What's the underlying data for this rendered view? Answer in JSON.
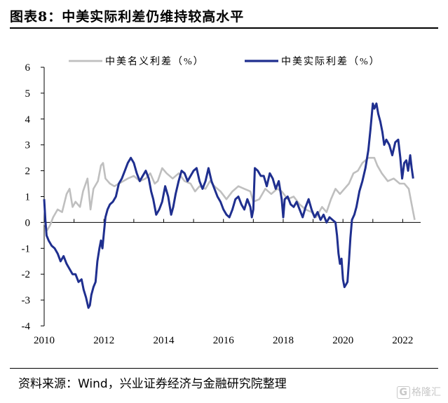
{
  "title": "图表8：中美实际利差仍维持较高水平",
  "source": "资料来源：Wind，兴业证券经济与金融研究院整理",
  "watermark": "格隆汇",
  "chart_data": {
    "type": "line",
    "title": "",
    "xlabel": "",
    "ylabel": "",
    "xlim": [
      2010,
      2022.6
    ],
    "ylim": [
      -4,
      6
    ],
    "x_ticks": [
      "2010",
      "2012",
      "2014",
      "2016",
      "2018",
      "2020",
      "2022"
    ],
    "y_ticks": [
      "6",
      "5",
      "4",
      "3",
      "2",
      "1",
      "0",
      "-1",
      "-2",
      "-3",
      "-4"
    ],
    "grid": false,
    "legend_position": "top",
    "series": [
      {
        "name": "中美名义利差（%）",
        "color": "#bfbfbf",
        "points": [
          [
            2010.0,
            0.0
          ],
          [
            2010.1,
            -0.3
          ],
          [
            2010.2,
            -0.1
          ],
          [
            2010.3,
            0.2
          ],
          [
            2010.45,
            0.5
          ],
          [
            2010.6,
            0.4
          ],
          [
            2010.75,
            1.1
          ],
          [
            2010.85,
            1.3
          ],
          [
            2010.95,
            0.6
          ],
          [
            2011.05,
            0.8
          ],
          [
            2011.2,
            0.6
          ],
          [
            2011.3,
            1.2
          ],
          [
            2011.45,
            1.7
          ],
          [
            2011.55,
            0.5
          ],
          [
            2011.65,
            1.3
          ],
          [
            2011.8,
            1.6
          ],
          [
            2011.9,
            2.2
          ],
          [
            2011.97,
            2.3
          ],
          [
            2012.05,
            1.7
          ],
          [
            2012.2,
            1.5
          ],
          [
            2012.35,
            1.4
          ],
          [
            2012.5,
            1.5
          ],
          [
            2012.65,
            1.6
          ],
          [
            2012.8,
            1.7
          ],
          [
            2013.0,
            1.8
          ],
          [
            2013.2,
            1.6
          ],
          [
            2013.4,
            1.7
          ],
          [
            2013.55,
            1.9
          ],
          [
            2013.7,
            1.5
          ],
          [
            2013.8,
            1.6
          ],
          [
            2013.95,
            2.1
          ],
          [
            2014.1,
            1.9
          ],
          [
            2014.3,
            1.7
          ],
          [
            2014.5,
            1.9
          ],
          [
            2014.7,
            1.6
          ],
          [
            2014.9,
            1.5
          ],
          [
            2015.05,
            1.2
          ],
          [
            2015.2,
            1.4
          ],
          [
            2015.4,
            1.3
          ],
          [
            2015.55,
            1.6
          ],
          [
            2015.7,
            1.4
          ],
          [
            2015.9,
            1.2
          ],
          [
            2016.1,
            0.9
          ],
          [
            2016.3,
            1.2
          ],
          [
            2016.5,
            1.4
          ],
          [
            2016.7,
            1.3
          ],
          [
            2016.9,
            1.2
          ],
          [
            2017.0,
            0.8
          ],
          [
            2017.2,
            0.9
          ],
          [
            2017.4,
            1.3
          ],
          [
            2017.6,
            1.1
          ],
          [
            2017.8,
            1.3
          ],
          [
            2017.95,
            1.2
          ],
          [
            2018.15,
            0.9
          ],
          [
            2018.35,
            1.0
          ],
          [
            2018.55,
            0.7
          ],
          [
            2018.75,
            0.5
          ],
          [
            2018.95,
            0.4
          ],
          [
            2019.1,
            0.2
          ],
          [
            2019.3,
            0.6
          ],
          [
            2019.45,
            0.4
          ],
          [
            2019.6,
            0.9
          ],
          [
            2019.75,
            1.3
          ],
          [
            2019.9,
            1.1
          ],
          [
            2020.05,
            1.3
          ],
          [
            2020.2,
            1.5
          ],
          [
            2020.35,
            1.9
          ],
          [
            2020.5,
            2.0
          ],
          [
            2020.65,
            2.3
          ],
          [
            2020.85,
            2.5
          ],
          [
            2021.05,
            2.5
          ],
          [
            2021.15,
            2.2
          ],
          [
            2021.3,
            1.9
          ],
          [
            2021.5,
            1.6
          ],
          [
            2021.7,
            1.7
          ],
          [
            2021.9,
            1.5
          ],
          [
            2022.05,
            1.5
          ],
          [
            2022.2,
            1.3
          ],
          [
            2022.3,
            0.7
          ],
          [
            2022.4,
            0.1
          ]
        ]
      },
      {
        "name": "中美实际利差（%）",
        "color": "#1f2f8f",
        "points": [
          [
            2010.0,
            0.9
          ],
          [
            2010.04,
            0.1
          ],
          [
            2010.08,
            -0.5
          ],
          [
            2010.15,
            -0.7
          ],
          [
            2010.25,
            -0.9
          ],
          [
            2010.35,
            -1.0
          ],
          [
            2010.45,
            -1.2
          ],
          [
            2010.55,
            -1.5
          ],
          [
            2010.65,
            -1.3
          ],
          [
            2010.75,
            -1.6
          ],
          [
            2010.85,
            -1.8
          ],
          [
            2010.95,
            -2.0
          ],
          [
            2011.05,
            -2.0
          ],
          [
            2011.15,
            -2.3
          ],
          [
            2011.25,
            -2.2
          ],
          [
            2011.32,
            -2.6
          ],
          [
            2011.4,
            -2.9
          ],
          [
            2011.48,
            -3.3
          ],
          [
            2011.53,
            -3.2
          ],
          [
            2011.58,
            -2.8
          ],
          [
            2011.65,
            -2.5
          ],
          [
            2011.72,
            -2.3
          ],
          [
            2011.78,
            -1.5
          ],
          [
            2011.85,
            -1.0
          ],
          [
            2011.9,
            -0.7
          ],
          [
            2011.95,
            -1.0
          ],
          [
            2012.0,
            -0.4
          ],
          [
            2012.05,
            0.2
          ],
          [
            2012.12,
            0.5
          ],
          [
            2012.2,
            0.7
          ],
          [
            2012.3,
            0.8
          ],
          [
            2012.4,
            1.0
          ],
          [
            2012.5,
            1.5
          ],
          [
            2012.6,
            1.7
          ],
          [
            2012.7,
            2.0
          ],
          [
            2012.8,
            2.3
          ],
          [
            2012.9,
            2.5
          ],
          [
            2013.0,
            2.3
          ],
          [
            2013.1,
            1.9
          ],
          [
            2013.2,
            1.6
          ],
          [
            2013.3,
            1.8
          ],
          [
            2013.4,
            2.0
          ],
          [
            2013.5,
            1.7
          ],
          [
            2013.58,
            1.2
          ],
          [
            2013.65,
            0.9
          ],
          [
            2013.75,
            0.3
          ],
          [
            2013.85,
            0.5
          ],
          [
            2013.95,
            0.8
          ],
          [
            2014.05,
            1.4
          ],
          [
            2014.15,
            1.0
          ],
          [
            2014.25,
            0.3
          ],
          [
            2014.32,
            0.6
          ],
          [
            2014.4,
            1.1
          ],
          [
            2014.5,
            1.6
          ],
          [
            2014.6,
            2.0
          ],
          [
            2014.7,
            1.9
          ],
          [
            2014.8,
            1.6
          ],
          [
            2014.9,
            1.8
          ],
          [
            2015.0,
            2.0
          ],
          [
            2015.1,
            2.1
          ],
          [
            2015.2,
            1.6
          ],
          [
            2015.3,
            1.3
          ],
          [
            2015.4,
            1.6
          ],
          [
            2015.5,
            2.1
          ],
          [
            2015.6,
            1.6
          ],
          [
            2015.7,
            1.3
          ],
          [
            2015.8,
            1.0
          ],
          [
            2015.9,
            0.8
          ],
          [
            2016.0,
            0.5
          ],
          [
            2016.1,
            0.3
          ],
          [
            2016.2,
            0.2
          ],
          [
            2016.3,
            0.5
          ],
          [
            2016.4,
            0.9
          ],
          [
            2016.5,
            1.0
          ],
          [
            2016.6,
            0.7
          ],
          [
            2016.7,
            0.5
          ],
          [
            2016.8,
            0.9
          ],
          [
            2016.9,
            0.6
          ],
          [
            2016.95,
            0.2
          ],
          [
            2017.0,
            0.5
          ],
          [
            2017.05,
            2.1
          ],
          [
            2017.15,
            2.0
          ],
          [
            2017.25,
            1.8
          ],
          [
            2017.35,
            1.8
          ],
          [
            2017.45,
            1.4
          ],
          [
            2017.55,
            1.9
          ],
          [
            2017.65,
            1.7
          ],
          [
            2017.75,
            1.3
          ],
          [
            2017.85,
            1.6
          ],
          [
            2017.95,
            0.9
          ],
          [
            2018.0,
            0.2
          ],
          [
            2018.05,
            0.9
          ],
          [
            2018.15,
            1.0
          ],
          [
            2018.25,
            0.7
          ],
          [
            2018.35,
            0.6
          ],
          [
            2018.45,
            0.8
          ],
          [
            2018.55,
            0.5
          ],
          [
            2018.65,
            0.2
          ],
          [
            2018.75,
            0.6
          ],
          [
            2018.85,
            0.9
          ],
          [
            2018.95,
            0.5
          ],
          [
            2019.05,
            0.2
          ],
          [
            2019.15,
            0.4
          ],
          [
            2019.25,
            0.1
          ],
          [
            2019.35,
            0.3
          ],
          [
            2019.45,
            0.0
          ],
          [
            2019.55,
            0.2
          ],
          [
            2019.65,
            0.1
          ],
          [
            2019.75,
            0.0
          ],
          [
            2019.8,
            -0.5
          ],
          [
            2019.85,
            -1.2
          ],
          [
            2019.9,
            -1.6
          ],
          [
            2019.95,
            -1.4
          ],
          [
            2020.0,
            -2.2
          ],
          [
            2020.05,
            -2.5
          ],
          [
            2020.1,
            -2.4
          ],
          [
            2020.15,
            -2.3
          ],
          [
            2020.2,
            -1.5
          ],
          [
            2020.25,
            -0.6
          ],
          [
            2020.3,
            0.1
          ],
          [
            2020.38,
            0.3
          ],
          [
            2020.45,
            0.6
          ],
          [
            2020.55,
            1.2
          ],
          [
            2020.65,
            1.6
          ],
          [
            2020.75,
            2.1
          ],
          [
            2020.85,
            2.8
          ],
          [
            2020.92,
            3.6
          ],
          [
            2021.0,
            4.6
          ],
          [
            2021.05,
            4.4
          ],
          [
            2021.12,
            4.6
          ],
          [
            2021.18,
            4.2
          ],
          [
            2021.25,
            3.9
          ],
          [
            2021.32,
            3.5
          ],
          [
            2021.38,
            3.0
          ],
          [
            2021.45,
            3.2
          ],
          [
            2021.55,
            3.0
          ],
          [
            2021.65,
            2.6
          ],
          [
            2021.75,
            3.1
          ],
          [
            2021.85,
            3.2
          ],
          [
            2021.92,
            2.5
          ],
          [
            2021.98,
            1.7
          ],
          [
            2022.05,
            2.3
          ],
          [
            2022.12,
            2.4
          ],
          [
            2022.18,
            2.0
          ],
          [
            2022.25,
            2.6
          ],
          [
            2022.3,
            2.1
          ],
          [
            2022.35,
            1.7
          ]
        ]
      }
    ]
  }
}
